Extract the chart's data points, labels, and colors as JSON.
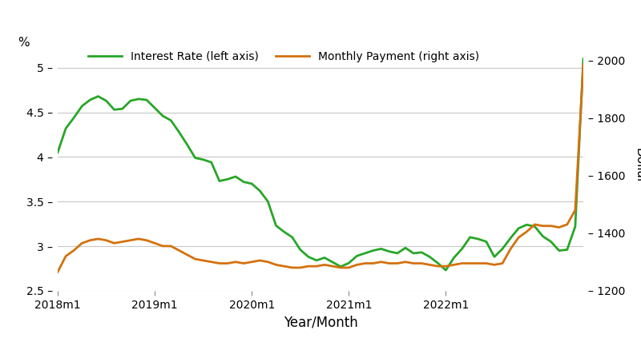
{
  "interest_rate": [
    4.05,
    4.32,
    4.44,
    4.57,
    4.64,
    4.68,
    4.63,
    4.53,
    4.54,
    4.63,
    4.65,
    4.64,
    4.55,
    4.46,
    4.41,
    4.28,
    4.14,
    3.99,
    3.97,
    3.94,
    3.73,
    3.75,
    3.78,
    3.72,
    3.7,
    3.62,
    3.5,
    3.23,
    3.16,
    3.1,
    2.96,
    2.88,
    2.84,
    2.87,
    2.82,
    2.77,
    2.81,
    2.89,
    2.92,
    2.95,
    2.97,
    2.94,
    2.92,
    2.98,
    2.92,
    2.93,
    2.88,
    2.81,
    2.73,
    2.87,
    2.97,
    3.1,
    3.08,
    3.05,
    2.88,
    2.97,
    3.09,
    3.2,
    3.24,
    3.22,
    3.11,
    3.05,
    2.95,
    2.96,
    3.22,
    5.1
  ],
  "monthly_payment": [
    1265,
    1320,
    1340,
    1365,
    1375,
    1380,
    1375,
    1365,
    1370,
    1375,
    1380,
    1375,
    1365,
    1355,
    1355,
    1340,
    1325,
    1310,
    1305,
    1300,
    1295,
    1295,
    1300,
    1295,
    1300,
    1305,
    1300,
    1290,
    1285,
    1280,
    1280,
    1285,
    1285,
    1290,
    1285,
    1280,
    1280,
    1290,
    1295,
    1295,
    1300,
    1295,
    1295,
    1300,
    1295,
    1295,
    1290,
    1285,
    1285,
    1290,
    1295,
    1295,
    1295,
    1295,
    1290,
    1295,
    1345,
    1385,
    1405,
    1430,
    1425,
    1425,
    1420,
    1430,
    1480,
    1985
  ],
  "x_tick_positions": [
    0,
    12,
    24,
    36,
    48,
    60
  ],
  "x_tick_labels": [
    "2018m1",
    "2019m1",
    "2020m1",
    "2021m1",
    "2022m1",
    ""
  ],
  "left_ylim": [
    2.5,
    5.3
  ],
  "right_ylim": [
    1200,
    2067
  ],
  "left_yticks": [
    2.5,
    3.0,
    3.5,
    4.0,
    4.5,
    5.0
  ],
  "right_yticks": [
    1200,
    1400,
    1600,
    1800,
    2000
  ],
  "left_ylabel": "%",
  "right_ylabel": "Dollar",
  "xlabel": "Year/Month",
  "interest_rate_color": "#27a627",
  "monthly_payment_color": "#d4710e",
  "legend_interest_label": "Interest Rate (left axis)",
  "legend_payment_label": "Monthly Payment (right axis)",
  "line_width": 2.0,
  "background_color": "#ffffff",
  "grid_color": "#c8c8c8"
}
